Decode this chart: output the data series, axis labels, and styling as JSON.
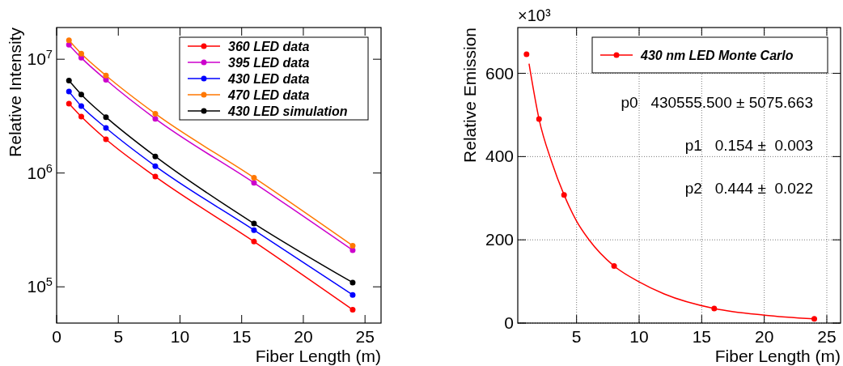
{
  "chart_data": [
    {
      "type": "line",
      "xlabel": "Fiber Length (m)",
      "ylabel": "Relative Intensity",
      "log": "y",
      "marker": "circle",
      "legend": "top right",
      "x": [
        1,
        2,
        4,
        8,
        16,
        24
      ],
      "xlim": [
        0,
        26.3
      ],
      "xticks": [
        0,
        5,
        10,
        15,
        20,
        25
      ],
      "ylim": [
        48000,
        19000000
      ],
      "yticks": [
        {
          "value": 100000,
          "label": "10$^{5}$"
        },
        {
          "value": 1000000,
          "label": "10$^{6}$"
        },
        {
          "value": 10000000,
          "label": "10$^{7}$"
        }
      ],
      "series": [
        {
          "name": "360 LED data",
          "color": "#ff0000",
          "values": [
            4080000,
            3130000,
            1980000,
            930000,
            250000,
            63000
          ]
        },
        {
          "name": "395 LED data",
          "color": "#cc00cc",
          "values": [
            13400000,
            10300000,
            6600000,
            3000000,
            820000,
            210000
          ]
        },
        {
          "name": "430 LED data",
          "color": "#0000ff",
          "values": [
            5200000,
            3870000,
            2490000,
            1150000,
            315000,
            85000
          ]
        },
        {
          "name": "470 LED data",
          "color": "#ff7700",
          "values": [
            14700000,
            11200000,
            7200000,
            3320000,
            910000,
            230000
          ]
        },
        {
          "name": "430 LED simulation",
          "color": "#000000",
          "values": [
            6500000,
            4900000,
            3100000,
            1400000,
            360000,
            109000
          ]
        }
      ]
    },
    {
      "type": "scatter",
      "xlabel": "Fiber Length (m)",
      "ylabel": "Relative Emission",
      "grid": true,
      "legend": "top right",
      "xlim": [
        0.3,
        26.1
      ],
      "xticks": [
        5,
        10,
        15,
        20,
        25
      ],
      "ylim": [
        0,
        710
      ],
      "yticks": [
        0,
        200,
        400,
        600
      ],
      "annotations": [
        "×10³",
        "p0   430555.500 ± 5075.663",
        "p1   0.154 ±  0.003",
        "p2   0.444 ±  0.022"
      ],
      "series": [
        {
          "name": "430 nm LED Monte Carlo",
          "marker": "circle",
          "color": "#ff0000",
          "x": [
            1,
            2,
            4,
            8,
            16,
            24
          ],
          "values": [
            646,
            490,
            308,
            137,
            35,
            10
          ]
        },
        {
          "type": "line",
          "marker": "none",
          "color": "#ff0000",
          "x": [
            1.2,
            2,
            3,
            4,
            5,
            6,
            8,
            10,
            12,
            16,
            20,
            24
          ],
          "values": [
            623,
            490,
            388,
            308,
            245,
            200,
            137,
            99,
            70,
            35,
            19,
            10
          ]
        }
      ]
    }
  ]
}
